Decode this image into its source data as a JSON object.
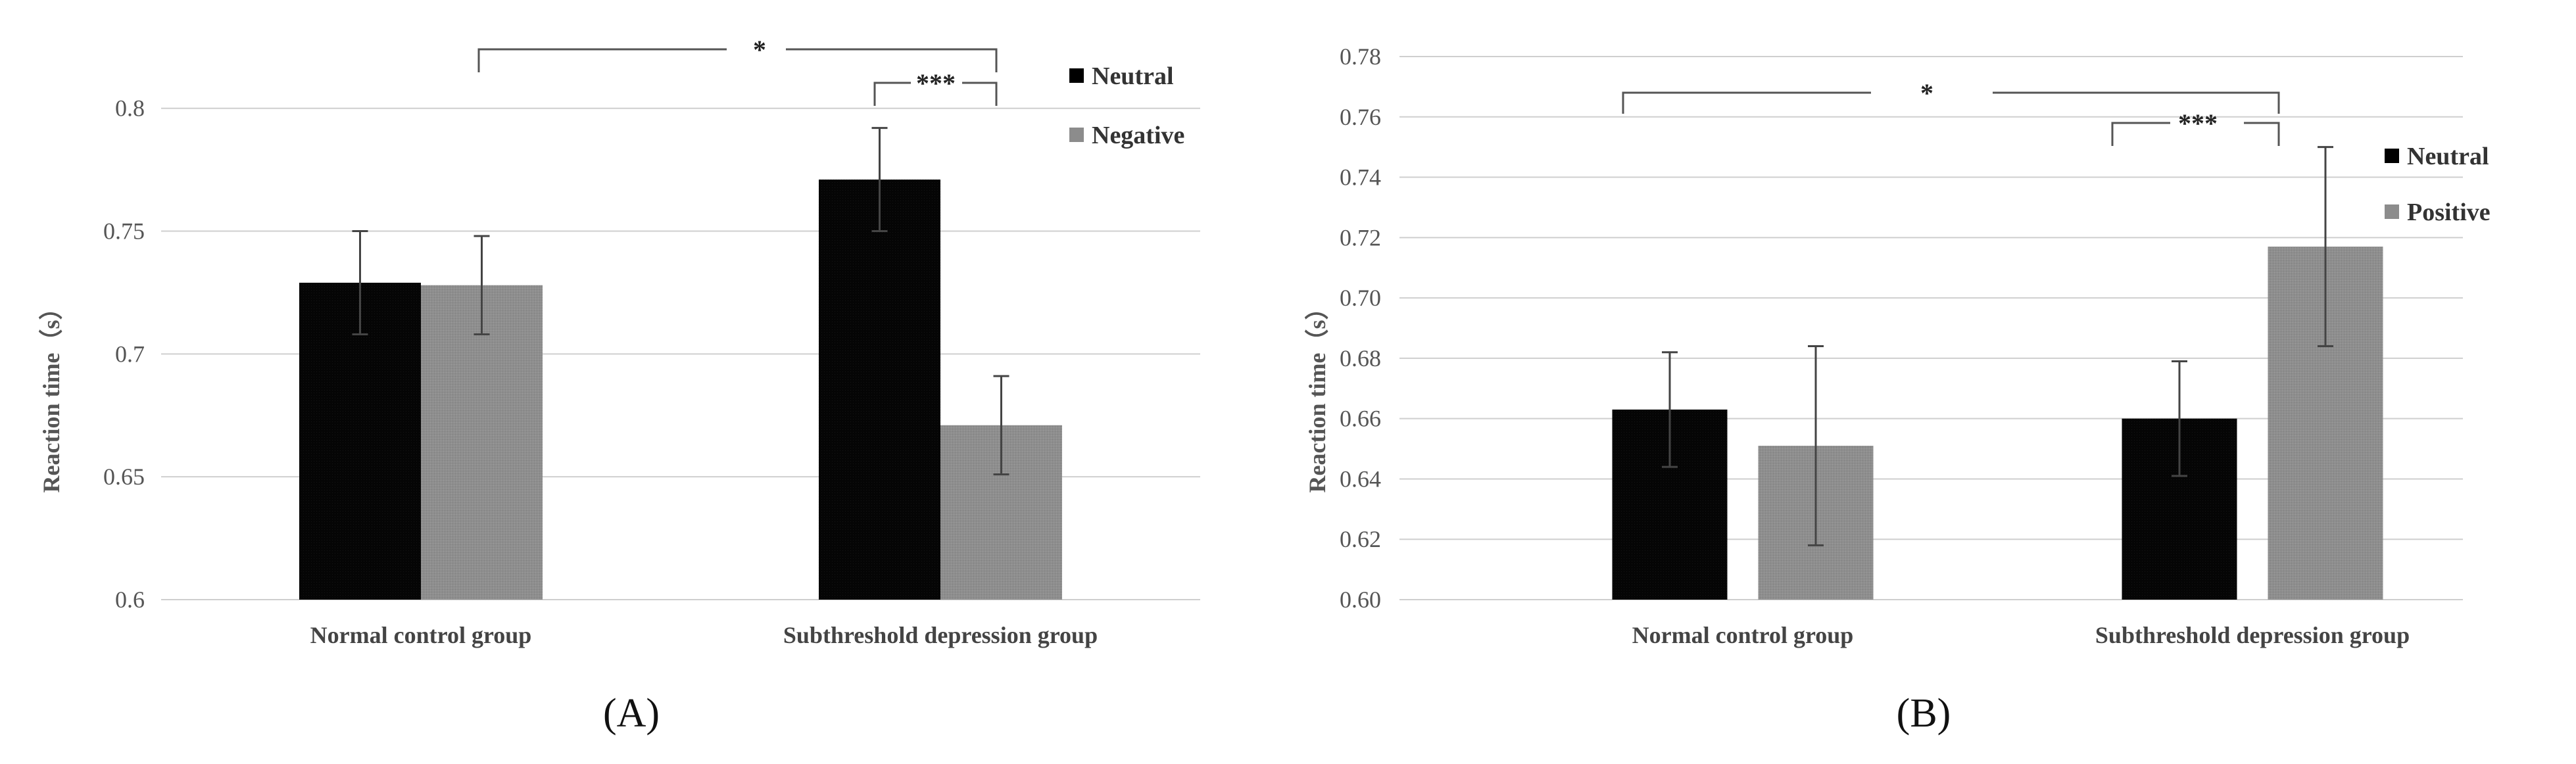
{
  "chart_data": [
    {
      "panel": "A",
      "type": "bar",
      "ylabel": "Reaction time（s）",
      "xlabel": "",
      "ylim": [
        0.6,
        0.82
      ],
      "yticks": [
        0.6,
        0.65,
        0.7,
        0.75,
        0.8
      ],
      "ytick_labels": [
        "0.6",
        "0.65",
        "0.7",
        "0.75",
        "0.8"
      ],
      "grid": true,
      "legend_position": "top-right",
      "categories": [
        "Normal control group",
        "Subthreshold depression group"
      ],
      "series": [
        {
          "name": "Neutral",
          "color": "#000000",
          "values": [
            0.729,
            0.771
          ],
          "errors": [
            0.021,
            0.021
          ]
        },
        {
          "name": "Negative",
          "color": "#8c8c8c",
          "values": [
            0.728,
            0.671
          ],
          "errors": [
            0.02,
            0.02
          ]
        }
      ],
      "annotations": [
        {
          "label": "*",
          "type": "between-groups"
        },
        {
          "label": "***",
          "type": "within-group"
        }
      ]
    },
    {
      "panel": "B",
      "type": "bar",
      "ylabel": "Reaction time（s）",
      "xlabel": "",
      "ylim": [
        0.6,
        0.78
      ],
      "yticks": [
        0.6,
        0.62,
        0.64,
        0.66,
        0.68,
        0.7,
        0.72,
        0.74,
        0.76,
        0.78
      ],
      "ytick_labels": [
        "0.60",
        "0.62",
        "0.64",
        "0.66",
        "0.68",
        "0.70",
        "0.72",
        "0.74",
        "0.76",
        "0.78"
      ],
      "grid": true,
      "legend_position": "right",
      "categories": [
        "Normal control group",
        "Subthreshold depression group"
      ],
      "series": [
        {
          "name": "Neutral",
          "color": "#000000",
          "values": [
            0.663,
            0.66
          ],
          "errors": [
            0.019,
            0.019
          ]
        },
        {
          "name": "Positive",
          "color": "#8c8c8c",
          "values": [
            0.651,
            0.717
          ],
          "errors": [
            0.033,
            0.033
          ]
        }
      ],
      "annotations": [
        {
          "label": "*",
          "type": "between-groups"
        },
        {
          "label": "***",
          "type": "within-group"
        }
      ]
    }
  ],
  "panel_labels": [
    "(A)",
    "(B)"
  ]
}
